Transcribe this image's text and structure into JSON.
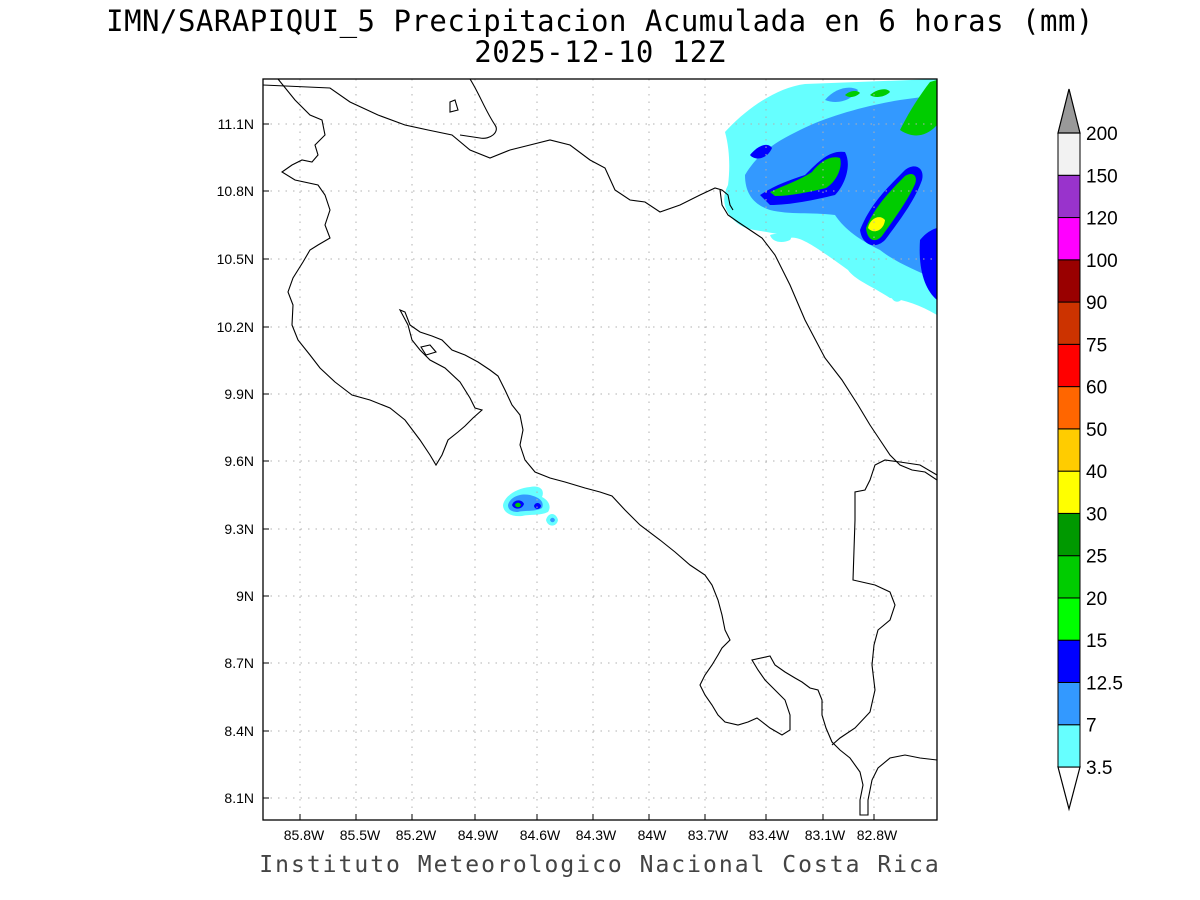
{
  "title": {
    "line1": "IMN/SARAPIQUI_5 Precipitacion Acumulada en 6 horas (mm)",
    "line2": "2025-12-10 12Z"
  },
  "footer": "Instituto Meteorologico Nacional Costa Rica",
  "axes": {
    "lon_ticks": [
      "85.8W",
      "85.5W",
      "85.2W",
      "84.9W",
      "84.6W",
      "84.3W",
      "84W",
      "83.7W",
      "83.4W",
      "83.1W",
      "82.8W"
    ],
    "lat_ticks": [
      "11.1N",
      "10.8N",
      "10.5N",
      "10.2N",
      "9.9N",
      "9.6N",
      "9.3N",
      "9N",
      "8.7N",
      "8.4N",
      "8.1N"
    ],
    "grid": true
  },
  "colorbar": {
    "levels": [
      "3.5",
      "7",
      "12.5",
      "15",
      "20",
      "25",
      "30",
      "40",
      "50",
      "60",
      "75",
      "90",
      "100",
      "120",
      "150",
      "200"
    ],
    "colors": [
      "#66ffff",
      "#3399ff",
      "#0000ff",
      "#00ff00",
      "#00cc00",
      "#009900",
      "#ffff00",
      "#ffcc00",
      "#ff6600",
      "#ff0000",
      "#cc3300",
      "#990000",
      "#ff00ff",
      "#9933cc",
      "#f2f2f2",
      "#999999"
    ]
  },
  "chart_data": {
    "type": "heatmap",
    "variable": "Precipitacion Acumulada en 6 horas (mm)",
    "x_ticks": [
      -85.8,
      -85.5,
      -85.2,
      -84.9,
      -84.6,
      -84.3,
      -84.0,
      -83.7,
      -83.4,
      -83.1,
      -82.8
    ],
    "y_ticks": [
      11.1,
      10.8,
      10.5,
      10.2,
      9.9,
      9.6,
      9.3,
      9.0,
      8.7,
      8.4,
      8.1
    ],
    "precip_areas": [
      {
        "lon": -83.45,
        "lat": 10.95,
        "max_mm": 12.5
      },
      {
        "lon": -83.0,
        "lat": 10.85,
        "max_mm": 20
      },
      {
        "lon": -82.85,
        "lat": 10.7,
        "max_mm": 25
      },
      {
        "lon": -82.9,
        "lat": 11.1,
        "max_mm": 20
      },
      {
        "lon": -84.65,
        "lat": 9.42,
        "max_mm": 12.5
      },
      {
        "lon": -84.55,
        "lat": 9.39,
        "max_mm": 7
      },
      {
        "lon": -84.48,
        "lat": 9.34,
        "max_mm": 3.5
      }
    ]
  }
}
